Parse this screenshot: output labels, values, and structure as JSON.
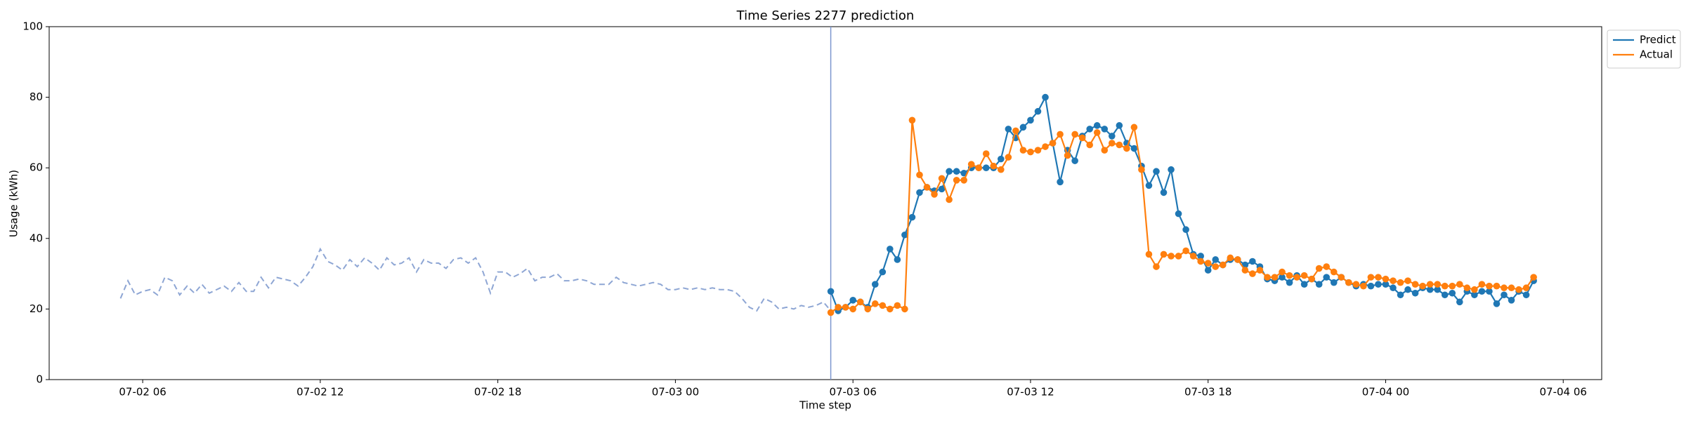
{
  "chart_data": {
    "type": "line",
    "title": "Time Series 2277 prediction",
    "x_label": "Time step",
    "y_label": "Usage (kWh)",
    "xlim": [
      2.84,
      55.3
    ],
    "ylim": [
      0,
      100
    ],
    "xticks": [
      {
        "value": 6,
        "label": "07-02 06"
      },
      {
        "value": 12,
        "label": "07-02 12"
      },
      {
        "value": 18,
        "label": "07-02 18"
      },
      {
        "value": 24,
        "label": "07-03 00"
      },
      {
        "value": 30,
        "label": "07-03 06"
      },
      {
        "value": 36,
        "label": "07-03 12"
      },
      {
        "value": 42,
        "label": "07-03 18"
      },
      {
        "value": 48,
        "label": "07-04 00"
      },
      {
        "value": 54,
        "label": "07-04 06"
      }
    ],
    "yticks": [
      0,
      20,
      40,
      60,
      80,
      100
    ],
    "split_x": 29.25,
    "split_color": "#7b96cf",
    "legend": "outside-upper-right",
    "history": {
      "color": "#8ea6d4",
      "dashed": true,
      "x": [
        5.25,
        5.5,
        5.75,
        6,
        6.25,
        6.5,
        6.75,
        7,
        7.25,
        7.5,
        7.75,
        8,
        8.25,
        8.5,
        8.75,
        9,
        9.25,
        9.5,
        9.75,
        10,
        10.25,
        10.5,
        10.75,
        11,
        11.25,
        11.5,
        11.75,
        12,
        12.25,
        12.5,
        12.75,
        13,
        13.25,
        13.5,
        13.75,
        14,
        14.25,
        14.5,
        14.75,
        15,
        15.25,
        15.5,
        15.75,
        16,
        16.25,
        16.5,
        16.75,
        17,
        17.25,
        17.5,
        17.75,
        18,
        18.25,
        18.5,
        18.75,
        19,
        19.25,
        19.5,
        19.75,
        20,
        20.25,
        20.5,
        20.75,
        21,
        21.25,
        21.5,
        21.75,
        22,
        22.25,
        22.5,
        22.75,
        23,
        23.25,
        23.5,
        23.75,
        24,
        24.25,
        24.5,
        24.75,
        25,
        25.25,
        25.5,
        25.75,
        26,
        26.25,
        26.5,
        26.75,
        27,
        27.25,
        27.5,
        27.75,
        28,
        28.25,
        28.5,
        28.75,
        29,
        29.25
      ],
      "values": [
        23,
        28,
        24,
        25,
        25.5,
        24,
        29,
        28,
        24,
        26.5,
        24.5,
        27,
        24.5,
        25.5,
        26.5,
        25,
        27.5,
        25,
        25,
        29,
        26,
        29,
        28.5,
        28,
        26.5,
        29,
        32,
        37,
        33.5,
        32.5,
        31,
        34,
        32,
        34.5,
        33,
        31,
        34.5,
        32.5,
        33,
        34.5,
        30.5,
        34,
        33,
        33,
        31.5,
        34,
        34.5,
        33,
        34.5,
        30.5,
        24.5,
        30.5,
        30.5,
        29,
        30,
        31.5,
        28,
        29,
        29,
        30,
        28,
        28,
        28.5,
        28,
        27,
        27,
        27,
        29,
        27.5,
        27,
        26.5,
        27,
        27.5,
        27,
        25.5,
        25.5,
        26,
        25.5,
        26,
        25.5,
        26,
        25.5,
        25.5,
        25,
        23,
        20.5,
        19.5,
        23,
        22,
        20,
        20.5,
        20,
        21,
        20.5,
        21,
        22,
        19.5
      ]
    },
    "x": [
      29.25,
      29.5,
      29.75,
      30,
      30.25,
      30.5,
      30.75,
      31,
      31.25,
      31.5,
      31.75,
      32,
      32.25,
      32.5,
      32.75,
      33,
      33.25,
      33.5,
      33.75,
      34,
      34.25,
      34.5,
      34.75,
      35,
      35.25,
      35.5,
      35.75,
      36,
      36.25,
      36.5,
      36.75,
      37,
      37.25,
      37.5,
      37.75,
      38,
      38.25,
      38.5,
      38.75,
      39,
      39.25,
      39.5,
      39.75,
      40,
      40.25,
      40.5,
      40.75,
      41,
      41.25,
      41.5,
      41.75,
      42,
      42.25,
      42.5,
      42.75,
      43,
      43.25,
      43.5,
      43.75,
      44,
      44.25,
      44.5,
      44.75,
      45,
      45.25,
      45.5,
      45.75,
      46,
      46.25,
      46.5,
      46.75,
      47,
      47.25,
      47.5,
      47.75,
      48,
      48.25,
      48.5,
      48.75,
      49,
      49.25,
      49.5,
      49.75,
      50,
      50.25,
      50.5,
      50.75,
      51,
      51.25,
      51.5,
      51.75,
      52,
      52.25,
      52.5,
      52.75,
      53
    ],
    "series": [
      {
        "name": "Predict",
        "color": "#1f77b4",
        "values": [
          25,
          19.5,
          20.5,
          22.5,
          22,
          20.5,
          27,
          30.5,
          37,
          34,
          41,
          46,
          53,
          54.5,
          53.5,
          54,
          59,
          59,
          58.5,
          60,
          60,
          60,
          60,
          62.5,
          71,
          68.5,
          71.5,
          73.5,
          76,
          80,
          67,
          56,
          65,
          62,
          69,
          71,
          72,
          71,
          69,
          72,
          67,
          65.5,
          60.5,
          55,
          59,
          53,
          59.5,
          47,
          42.5,
          35.5,
          35,
          31,
          34,
          32.5,
          34,
          34,
          32.5,
          33.5,
          32,
          28.5,
          28,
          29,
          27.5,
          29.5,
          27,
          28.5,
          27,
          29,
          27.5,
          29,
          27.5,
          26.5,
          27,
          26.5,
          27,
          27,
          26,
          24,
          25.5,
          24.5,
          26,
          25.5,
          25.5,
          24,
          24.5,
          22,
          25,
          24,
          25,
          25,
          21.5,
          24,
          22.5,
          25,
          24,
          28
        ]
      },
      {
        "name": "Actual",
        "color": "#ff7f0e",
        "values": [
          19,
          20.5,
          20.5,
          20,
          22,
          20,
          21.5,
          21,
          20,
          21,
          20,
          73.5,
          58,
          54.5,
          52.5,
          57,
          51,
          56.5,
          56.5,
          61,
          60,
          64,
          60.5,
          59.5,
          63,
          70.5,
          65,
          64.5,
          65,
          66,
          67,
          69.5,
          63.5,
          69.5,
          68.5,
          66.5,
          70,
          65,
          67,
          66.5,
          65.5,
          71.5,
          59.5,
          35.5,
          32,
          35.5,
          35,
          35,
          36.5,
          35,
          33.5,
          33,
          32,
          32.5,
          34.5,
          34,
          31,
          30,
          31,
          29,
          29,
          30.5,
          29.5,
          29,
          29.5,
          28.5,
          31.5,
          32,
          30.5,
          29,
          27.5,
          27,
          26.5,
          29,
          29,
          28.5,
          28,
          27.5,
          28,
          27,
          26.5,
          27,
          27,
          26.5,
          26.5,
          27,
          26,
          25.5,
          27,
          26.5,
          26.5,
          26,
          26,
          25.5,
          26,
          29
        ]
      }
    ]
  }
}
